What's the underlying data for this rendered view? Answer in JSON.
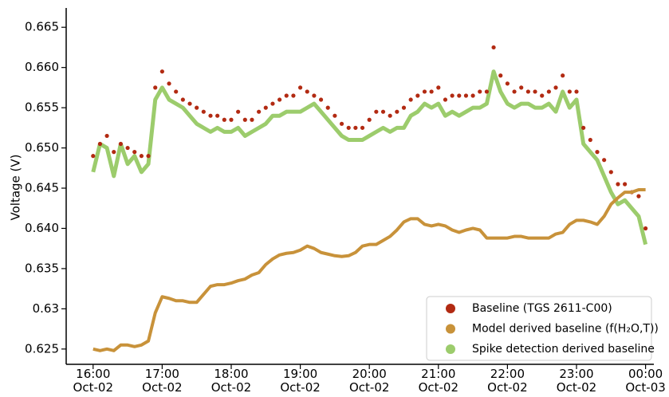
{
  "chart_data": {
    "type": "line",
    "y_label": "Voltage (V)",
    "x": [
      16.0,
      16.1,
      16.2,
      16.3,
      16.4,
      16.5,
      16.6,
      16.7,
      16.8,
      16.9,
      17.0,
      17.1,
      17.2,
      17.3,
      17.4,
      17.5,
      17.6,
      17.7,
      17.8,
      17.9,
      18.0,
      18.1,
      18.2,
      18.3,
      18.4,
      18.5,
      18.6,
      18.7,
      18.8,
      18.9,
      19.0,
      19.1,
      19.2,
      19.3,
      19.4,
      19.5,
      19.6,
      19.7,
      19.8,
      19.9,
      20.0,
      20.1,
      20.2,
      20.3,
      20.4,
      20.5,
      20.6,
      20.7,
      20.8,
      20.9,
      21.0,
      21.1,
      21.2,
      21.3,
      21.4,
      21.5,
      21.6,
      21.7,
      21.8,
      21.9,
      22.0,
      22.1,
      22.2,
      22.3,
      22.4,
      22.5,
      22.6,
      22.7,
      22.8,
      22.9,
      23.0,
      23.1,
      23.2,
      23.3,
      23.4,
      23.5,
      23.6,
      23.7,
      23.8,
      23.9,
      24.0
    ],
    "series": [
      {
        "name": "Baseline (TGS 2611-C00)",
        "color": "#b22a12",
        "mode": "markers",
        "values": [
          0.649,
          0.6505,
          0.6515,
          0.6495,
          0.6505,
          0.65,
          0.6495,
          0.649,
          0.649,
          0.6575,
          0.6595,
          0.658,
          0.657,
          0.656,
          0.6555,
          0.655,
          0.6545,
          0.654,
          0.654,
          0.6535,
          0.6535,
          0.6545,
          0.6535,
          0.6535,
          0.6545,
          0.655,
          0.6555,
          0.656,
          0.6565,
          0.6565,
          0.6575,
          0.657,
          0.6565,
          0.656,
          0.655,
          0.654,
          0.653,
          0.6525,
          0.6525,
          0.6525,
          0.6535,
          0.6545,
          0.6545,
          0.654,
          0.6545,
          0.655,
          0.656,
          0.6565,
          0.657,
          0.657,
          0.6575,
          0.656,
          0.6565,
          0.6565,
          0.6565,
          0.6565,
          0.657,
          0.657,
          0.6625,
          0.659,
          0.658,
          0.657,
          0.6575,
          0.657,
          0.657,
          0.6565,
          0.657,
          0.6575,
          0.659,
          0.657,
          0.657,
          0.6525,
          0.651,
          0.6495,
          0.6485,
          0.647,
          0.6455,
          0.6455,
          0.6445,
          0.644,
          0.64
        ]
      },
      {
        "name": "Model derived baseline (f(H₂O,T))",
        "color": "#c8923a",
        "mode": "line",
        "values": [
          0.625,
          0.6248,
          0.625,
          0.6248,
          0.6255,
          0.6255,
          0.6253,
          0.6255,
          0.626,
          0.6295,
          0.6315,
          0.6313,
          0.631,
          0.631,
          0.6308,
          0.6308,
          0.6318,
          0.6328,
          0.633,
          0.633,
          0.6332,
          0.6335,
          0.6337,
          0.6342,
          0.6345,
          0.6355,
          0.6362,
          0.6367,
          0.6369,
          0.637,
          0.6373,
          0.6378,
          0.6375,
          0.637,
          0.6368,
          0.6366,
          0.6365,
          0.6366,
          0.637,
          0.6378,
          0.638,
          0.638,
          0.6385,
          0.639,
          0.6398,
          0.6408,
          0.6412,
          0.6412,
          0.6405,
          0.6403,
          0.6405,
          0.6403,
          0.6398,
          0.6395,
          0.6398,
          0.64,
          0.6398,
          0.6388,
          0.6388,
          0.6388,
          0.6388,
          0.639,
          0.639,
          0.6388,
          0.6388,
          0.6388,
          0.6388,
          0.6393,
          0.6395,
          0.6405,
          0.641,
          0.641,
          0.6408,
          0.6405,
          0.6415,
          0.643,
          0.6438,
          0.6445,
          0.6445,
          0.6448,
          0.6448
        ]
      },
      {
        "name": "Spike detection derived baseline",
        "color": "#9ccc6c",
        "mode": "line",
        "values": [
          0.647,
          0.6505,
          0.65,
          0.6465,
          0.6505,
          0.648,
          0.649,
          0.647,
          0.648,
          0.656,
          0.6575,
          0.656,
          0.6555,
          0.655,
          0.654,
          0.653,
          0.6525,
          0.652,
          0.6525,
          0.652,
          0.652,
          0.6525,
          0.6515,
          0.652,
          0.6525,
          0.653,
          0.654,
          0.654,
          0.6545,
          0.6545,
          0.6545,
          0.655,
          0.6555,
          0.6545,
          0.6535,
          0.6525,
          0.6515,
          0.651,
          0.651,
          0.651,
          0.6515,
          0.652,
          0.6525,
          0.652,
          0.6525,
          0.6525,
          0.654,
          0.6545,
          0.6555,
          0.655,
          0.6555,
          0.654,
          0.6545,
          0.654,
          0.6545,
          0.655,
          0.655,
          0.6555,
          0.6595,
          0.657,
          0.6555,
          0.655,
          0.6555,
          0.6555,
          0.655,
          0.655,
          0.6555,
          0.6545,
          0.657,
          0.655,
          0.656,
          0.6505,
          0.6495,
          0.6485,
          0.6465,
          0.6445,
          0.643,
          0.6435,
          0.6425,
          0.6415,
          0.638
        ]
      }
    ],
    "xlim": [
      15.61,
      24.12
    ],
    "ylim": [
      0.6231,
      0.6674
    ],
    "xticks": [
      {
        "value": 16,
        "label": "16:00\nOct-02"
      },
      {
        "value": 17,
        "label": "17:00\nOct-02"
      },
      {
        "value": 18,
        "label": "18:00\nOct-02"
      },
      {
        "value": 19,
        "label": "19:00\nOct-02"
      },
      {
        "value": 20,
        "label": "20:00\nOct-02"
      },
      {
        "value": 21,
        "label": "21:00\nOct-02"
      },
      {
        "value": 22,
        "label": "22:00\nOct-02"
      },
      {
        "value": 23,
        "label": "23:00\nOct-02"
      },
      {
        "value": 24,
        "label": "00:00\nOct-03"
      }
    ],
    "yticks": [
      0.625,
      0.63,
      {
        "value": 0.635,
        "label": "0.635"
      },
      {
        "value": 0.64,
        "label": "0.640"
      },
      0.645,
      {
        "value": 0.65,
        "label": "0.650"
      },
      0.655,
      {
        "value": 0.66,
        "label": "0.660"
      },
      0.665
    ],
    "legend": "lower right",
    "grid": false
  }
}
